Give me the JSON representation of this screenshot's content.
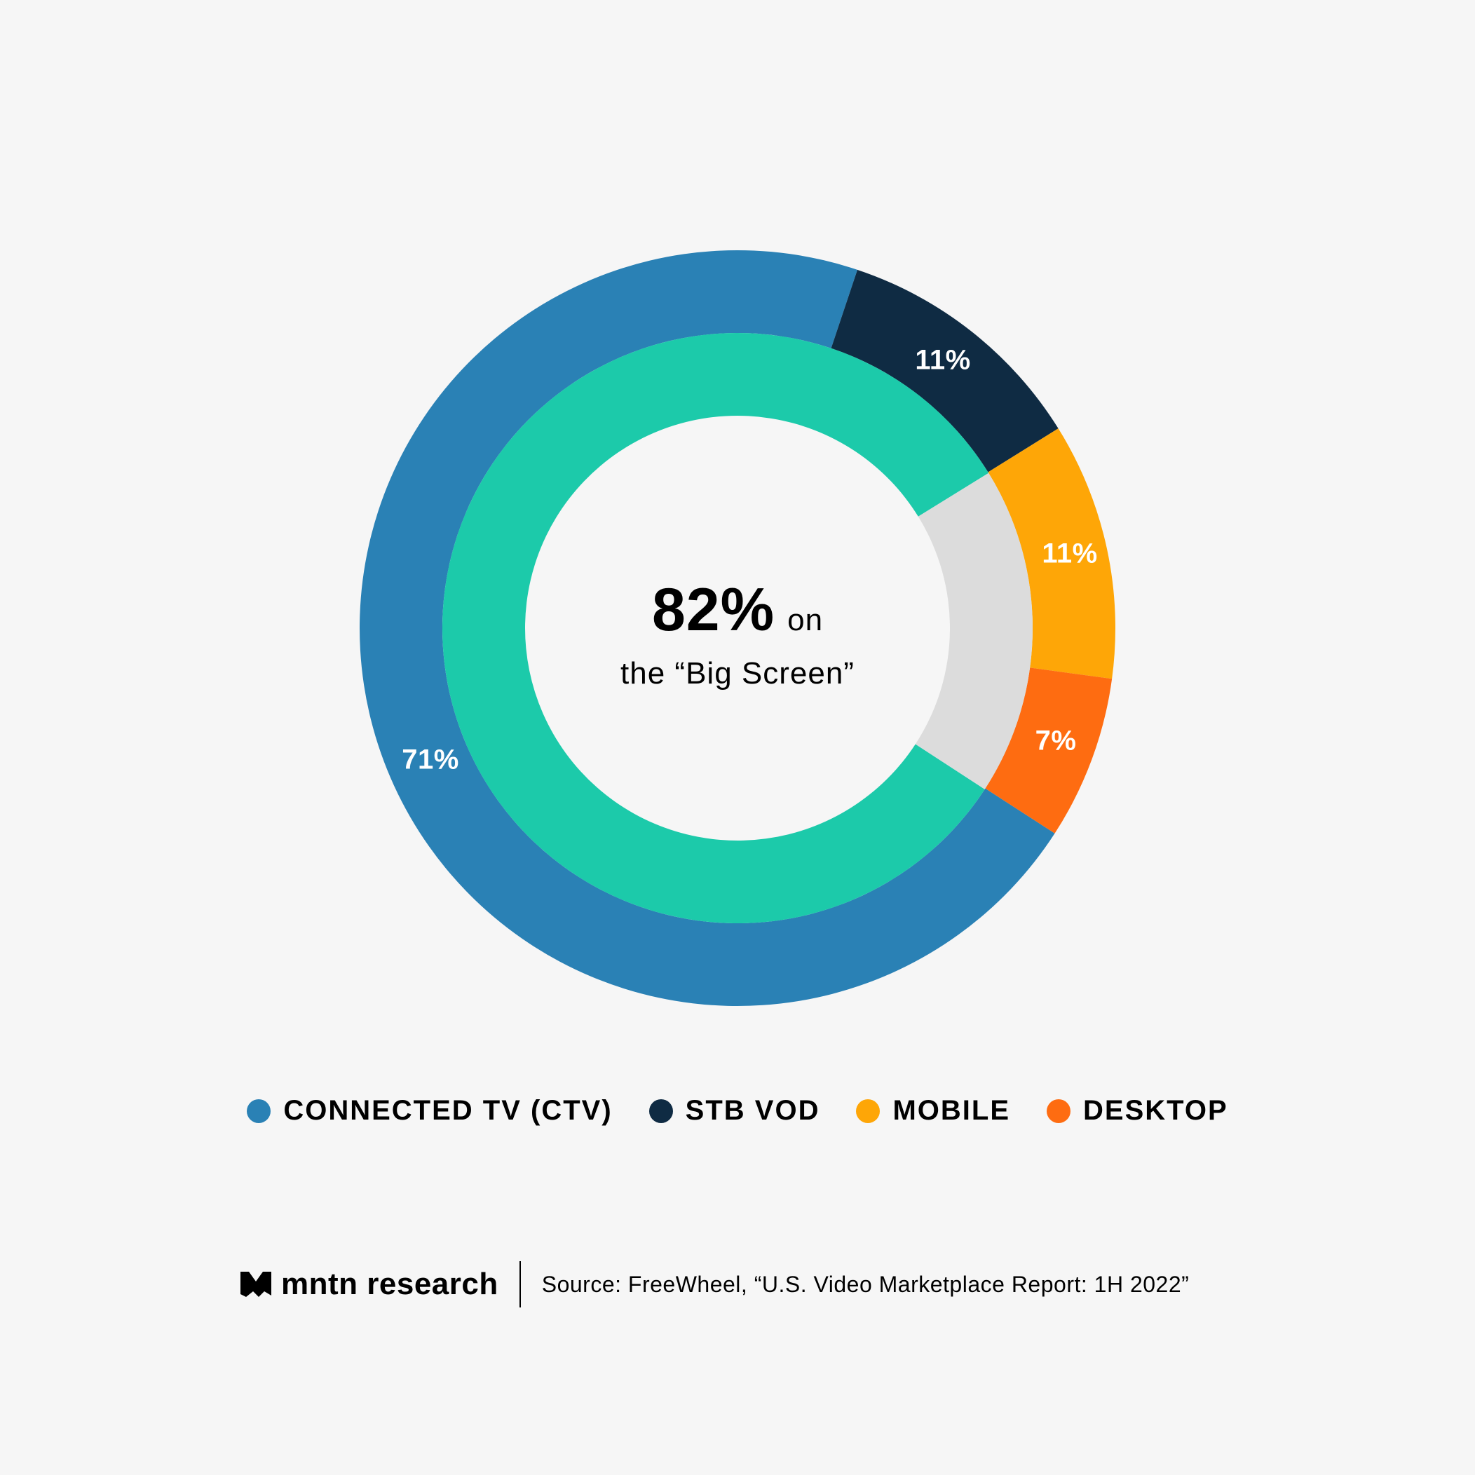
{
  "chart_data": {
    "type": "pie",
    "subtype": "nested-donut",
    "title": "",
    "center_text": {
      "value": "82%",
      "suffix": "on",
      "line2": "the “Big Screen”"
    },
    "outer_ring": {
      "categories": [
        "Connected TV (CTV)",
        "STB VOD",
        "Mobile",
        "Desktop"
      ],
      "values": [
        71,
        11,
        11,
        7
      ],
      "labels": [
        "71%",
        "11%",
        "11%",
        "7%"
      ],
      "colors": [
        "#2a81b5",
        "#0f2b43",
        "#fea607",
        "#fe6c11"
      ],
      "start_angle_deg": 122.9,
      "direction": "clockwise"
    },
    "inner_ring": {
      "categories": [
        "Big Screen",
        "Other"
      ],
      "values": [
        82,
        18
      ],
      "colors": [
        "#1ccaaa",
        "#dcdcdc"
      ],
      "other_start_angle_deg": 58.3
    },
    "legend_position": "bottom"
  },
  "center": {
    "value": "82%",
    "suffix": "on",
    "line2": "the “Big Screen”"
  },
  "labels": {
    "ctv": "71%",
    "stb": "11%",
    "mobile": "11%",
    "desktop": "7%"
  },
  "legend": [
    {
      "label": "CONNECTED TV (CTV)",
      "color": "#2a81b5"
    },
    {
      "label": "STB VOD",
      "color": "#0f2b43"
    },
    {
      "label": "MOBILE",
      "color": "#fea607"
    },
    {
      "label": "DESKTOP",
      "color": "#fe6c11"
    }
  ],
  "footer": {
    "brand": "mntn research",
    "source": "Source: FreeWheel, “U.S. Video Marketplace Report: 1H 2022”"
  }
}
